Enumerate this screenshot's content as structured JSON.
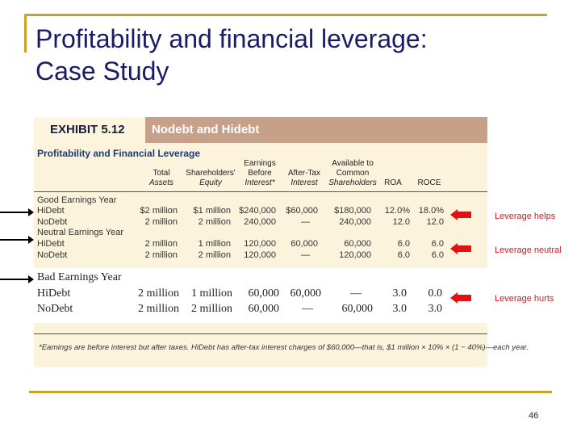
{
  "slide": {
    "title_line1": "Profitability and financial leverage:",
    "title_line2": "Case Study",
    "page_number": "46"
  },
  "exhibit": {
    "tag": "EXHIBIT 5.12",
    "name": "Nodebt and Hidebt",
    "subtitle": "Profitability and Financial Leverage",
    "columns": [
      {
        "line1": "",
        "line2": "Total",
        "line3": "Assets"
      },
      {
        "line1": "",
        "line2": "Shareholders'",
        "line3": "Equity"
      },
      {
        "line1": "Earnings",
        "line2": "Before",
        "line3": "Interest*"
      },
      {
        "line1": "",
        "line2": "After-Tax",
        "line3": "Interest"
      },
      {
        "line1": "Available to",
        "line2": "Common",
        "line3": "Shareholders"
      },
      {
        "line1": "",
        "line2": "",
        "line3": "ROA"
      },
      {
        "line1": "",
        "line2": "",
        "line3": "ROCE"
      }
    ],
    "good": {
      "label": "Good Earnings Year",
      "rows": [
        {
          "name": "HiDebt",
          "values": [
            "$2 million",
            "$1 million",
            "$240,000",
            "$60,000",
            "$180,000",
            "12.0%",
            "18.0%"
          ]
        },
        {
          "name": "NoDebt",
          "values": [
            "2 million",
            "2 million",
            "240,000",
            "—",
            "240,000",
            "12.0",
            "12.0"
          ]
        }
      ]
    },
    "neutral": {
      "label": "Neutral Earnings Year",
      "rows": [
        {
          "name": "HiDebt",
          "values": [
            "2 million",
            "1 million",
            "120,000",
            "60,000",
            "60,000",
            "6.0",
            "6.0"
          ]
        },
        {
          "name": "NoDebt",
          "values": [
            "2 million",
            "2 million",
            "120,000",
            "—",
            "120,000",
            "6.0",
            "6.0"
          ]
        }
      ]
    },
    "bad": {
      "label": "Bad Earnings Year",
      "rows": [
        {
          "name": "HiDebt",
          "values": [
            "2 million",
            "1 million",
            "60,000",
            "60,000",
            "—",
            "3.0",
            "0.0"
          ]
        },
        {
          "name": "NoDebt",
          "values": [
            "2 million",
            "2 million",
            "60,000",
            "—",
            "60,000",
            "3.0",
            "3.0"
          ]
        }
      ]
    },
    "footnote": "*Earnings are before interest but after taxes. HiDebt has after-tax interest charges of $60,000—that is, $1 million × 10% × (1 − 40%)—each year."
  },
  "annotations": {
    "helps": "Leverage helps",
    "neutral": "Leverage neutral",
    "hurts": "Leverage hurts"
  },
  "colors": {
    "accent_gold": "#c9a227",
    "title_navy": "#1a1a66",
    "annotation_red": "#d21a1a",
    "exhibit_bg": "#fbf3db",
    "header_band": "#c7a08a"
  }
}
